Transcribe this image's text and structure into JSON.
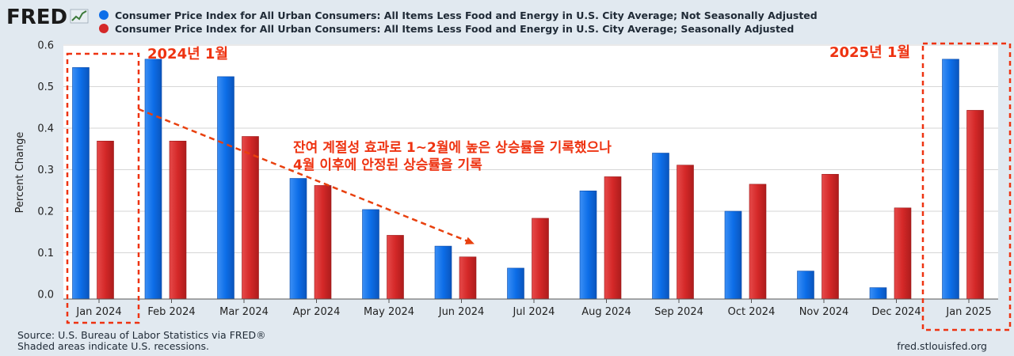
{
  "header": {
    "logo": "FRED",
    "logo_icon": "chart-line-icon"
  },
  "chart_data": {
    "type": "bar",
    "title": "",
    "xlabel": "",
    "ylabel": "Percent Change",
    "ylim": [
      0,
      0.6
    ],
    "yticks": [
      "0.0",
      "0.1",
      "0.2",
      "0.3",
      "0.4",
      "0.5",
      "0.6"
    ],
    "grid": true,
    "legend_position": "top-left",
    "categories": [
      "Jan 2024",
      "Feb 2024",
      "Mar 2024",
      "Apr 2024",
      "May 2024",
      "Jun 2024",
      "Jul 2024",
      "Aug 2024",
      "Sep 2024",
      "Oct 2024",
      "Nov 2024",
      "Dec 2024",
      "Jan 2025"
    ],
    "series": [
      {
        "name": "Consumer Price Index for All Urban Consumers: All Items Less Food and Energy in U.S. City Average; Not Seasonally Adjusted",
        "color": "#0d6ee8",
        "values": [
          0.546,
          0.566,
          0.524,
          0.279,
          0.204,
          0.116,
          0.063,
          0.249,
          0.34,
          0.2,
          0.056,
          0.016,
          0.566
        ]
      },
      {
        "name": "Consumer Price Index for All Urban Consumers: All Items Less Food and Energy in U.S. City Average; Seasonally Adjusted",
        "color": "#d42828",
        "values": [
          0.369,
          0.369,
          0.38,
          0.262,
          0.142,
          0.09,
          0.183,
          0.283,
          0.311,
          0.265,
          0.289,
          0.208,
          0.443
        ]
      }
    ],
    "annotations": {
      "label_2024": "2024년 1월",
      "label_2025": "2025년 1월",
      "note_line1": "잔여 계절성 효과로 1~2월에 높은 상승률을 기록했으나",
      "note_line2": "4월 이후에 안정된 상승률을 기록"
    }
  },
  "footer": {
    "source": "Source: U.S. Bureau of Labor Statistics via FRED®",
    "shaded_note": "Shaded areas indicate U.S. recessions.",
    "site": "fred.stlouisfed.org"
  },
  "colors": {
    "background": "#e1e9f0",
    "plot_background": "#ffffff",
    "blue": "#0d6ee8",
    "red": "#d42828",
    "annotation": "#ee3311",
    "arrow": "#e8400e"
  }
}
